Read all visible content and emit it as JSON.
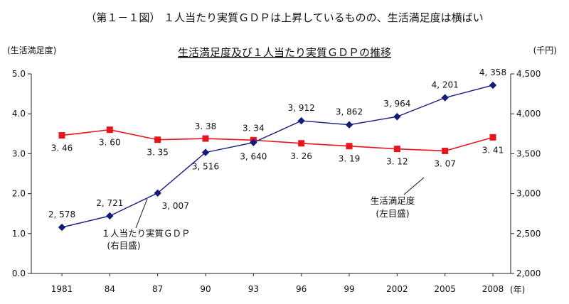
{
  "figure_title": "（第１－１図） １人当たり実質ＧＤＰは上昇しているものの、生活満足度は横ばい",
  "chart_data": {
    "type": "line",
    "title": "生活満足度及び１人当たり実質ＧＤＰの推移",
    "categories": [
      "1981",
      "84",
      "87",
      "90",
      "93",
      "96",
      "99",
      "2002",
      "2005",
      "2008"
    ],
    "x_unit": "(年)",
    "y_left": {
      "label": "(生活満足度)",
      "range": [
        0,
        5
      ],
      "ticks": [
        "0.0",
        "1.0",
        "2.0",
        "3.0",
        "4.0",
        "5.0"
      ]
    },
    "y_right": {
      "label": "(千円)",
      "range": [
        2000,
        4500
      ],
      "ticks": [
        "2,000",
        "2,500",
        "3,000",
        "3,500",
        "4,000",
        "4,500"
      ]
    },
    "grid": false,
    "series": [
      {
        "name": "生活満足度",
        "axis_note": "(左目盛)",
        "axis": "left",
        "color": "#e8151c",
        "marker": "square",
        "values": [
          3.46,
          3.6,
          3.35,
          3.38,
          3.34,
          3.26,
          3.19,
          3.12,
          3.07,
          3.41
        ],
        "labels": [
          "3. 46",
          "3. 60",
          "3. 35",
          "3. 38",
          "3. 34",
          "3. 26",
          "3. 19",
          "3. 12",
          "3. 07",
          "3. 41"
        ]
      },
      {
        "name": "１人当たり実質ＧＤＰ",
        "axis_note": "(右目盛)",
        "axis": "right",
        "color": "#141a7a",
        "marker": "diamond",
        "values": [
          2578,
          2721,
          3007,
          3516,
          3640,
          3912,
          3862,
          3964,
          4201,
          4358
        ],
        "labels": [
          "2, 578",
          "2, 721",
          "3, 007",
          "3, 516",
          "3, 640",
          "3, 912",
          "3, 862",
          "3, 964",
          "4, 201",
          "4, 358"
        ]
      }
    ]
  }
}
